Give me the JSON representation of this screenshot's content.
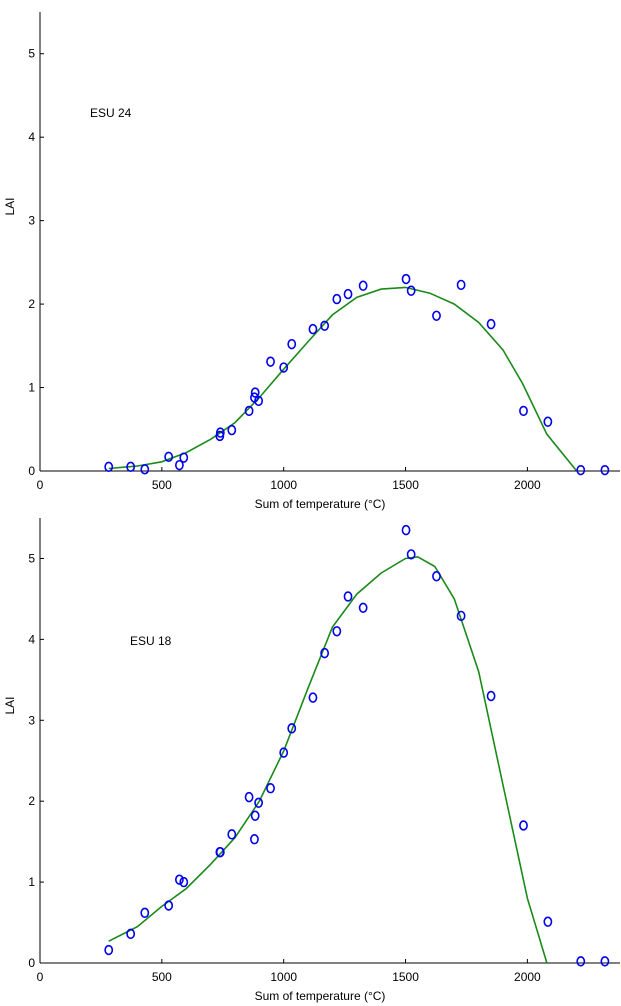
{
  "chart_data": [
    {
      "type": "scatter",
      "annotation": "ESU 24",
      "xlabel": "Sum of   temperature (°C)",
      "ylabel": "LAI",
      "xlim": [
        0,
        2380
      ],
      "ylim": [
        0,
        5.5
      ],
      "xticks": [
        0,
        500,
        1000,
        1500,
        2000
      ],
      "yticks": [
        0,
        1,
        2,
        3,
        4,
        5
      ],
      "grid": false,
      "observed_color": "#0000ee",
      "fit_color": "#1a8a1a",
      "observed": {
        "x": [
          282,
          372,
          430,
          528,
          572,
          590,
          738,
          740,
          787,
          858,
          880,
          883,
          897,
          946,
          1000,
          1033,
          1120,
          1168,
          1218,
          1264,
          1326,
          1502,
          1523,
          1627,
          1728,
          1851,
          1984,
          2084,
          2219,
          2318
        ],
        "y": [
          0.05,
          0.05,
          0.02,
          0.17,
          0.07,
          0.16,
          0.42,
          0.46,
          0.49,
          0.72,
          0.88,
          0.94,
          0.84,
          1.31,
          1.24,
          1.52,
          1.7,
          1.74,
          2.06,
          2.12,
          2.22,
          2.3,
          2.16,
          1.86,
          2.23,
          1.76,
          0.72,
          0.59,
          0.01,
          0.01
        ]
      },
      "fit": {
        "x": [
          282,
          400,
          500,
          600,
          700,
          800,
          900,
          1000,
          1100,
          1200,
          1300,
          1400,
          1500,
          1600,
          1700,
          1800,
          1900,
          1980,
          2080,
          2200
        ],
        "y": [
          0.03,
          0.06,
          0.11,
          0.22,
          0.38,
          0.58,
          0.88,
          1.22,
          1.55,
          1.87,
          2.08,
          2.18,
          2.2,
          2.13,
          2.0,
          1.78,
          1.45,
          1.05,
          0.44,
          0.01
        ]
      }
    },
    {
      "type": "scatter",
      "annotation": "ESU 18",
      "xlabel": "Sum of  temperature (°C)",
      "ylabel": "LAI",
      "xlim": [
        0,
        2380
      ],
      "ylim": [
        0,
        5.5
      ],
      "xticks": [
        0,
        500,
        1000,
        1500,
        2000
      ],
      "yticks": [
        0,
        1,
        2,
        3,
        4,
        5
      ],
      "grid": false,
      "observed_color": "#0000ee",
      "fit_color": "#1a8a1a",
      "observed": {
        "x": [
          282,
          372,
          430,
          528,
          572,
          590,
          738,
          740,
          787,
          858,
          880,
          883,
          897,
          946,
          1000,
          1033,
          1120,
          1168,
          1218,
          1264,
          1326,
          1502,
          1523,
          1627,
          1728,
          1851,
          1984,
          2084,
          2219,
          2318
        ],
        "y": [
          0.16,
          0.36,
          0.62,
          0.71,
          1.03,
          1.0,
          1.37,
          1.37,
          1.59,
          2.05,
          1.53,
          1.82,
          1.98,
          2.16,
          2.6,
          2.9,
          3.28,
          3.83,
          4.1,
          4.53,
          4.39,
          5.35,
          5.05,
          4.78,
          4.29,
          3.3,
          1.7,
          0.51,
          0.02,
          0.02
        ]
      },
      "fit": {
        "x": [
          282,
          400,
          500,
          600,
          700,
          800,
          900,
          1000,
          1100,
          1200,
          1300,
          1400,
          1500,
          1550,
          1620,
          1700,
          1800,
          1900,
          2000,
          2080
        ],
        "y": [
          0.27,
          0.45,
          0.7,
          0.92,
          1.22,
          1.55,
          2.0,
          2.62,
          3.4,
          4.15,
          4.56,
          4.82,
          5.0,
          5.02,
          4.9,
          4.5,
          3.6,
          2.2,
          0.8,
          0.0
        ]
      }
    }
  ]
}
